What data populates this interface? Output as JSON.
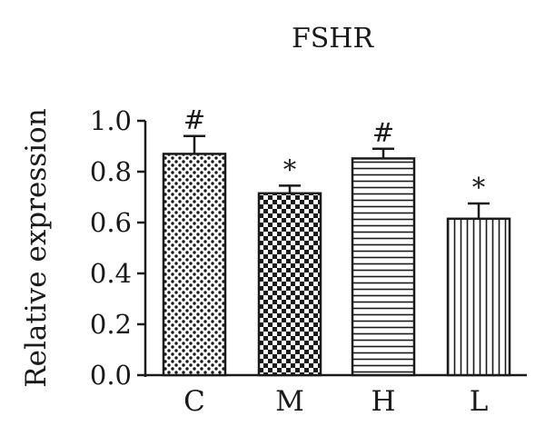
{
  "chart_data": {
    "type": "bar",
    "title": "FSHR",
    "xlabel": "",
    "ylabel": "Relative expression",
    "ylim": [
      0,
      1.0
    ],
    "yticks": [
      "0.0",
      "0.2",
      "0.4",
      "0.6",
      "0.8",
      "1.0"
    ],
    "categories": [
      "C",
      "M",
      "H",
      "L"
    ],
    "values": [
      0.87,
      0.715,
      0.852,
      0.615
    ],
    "errors": [
      0.07,
      0.03,
      0.038,
      0.06
    ],
    "annotations": [
      "#",
      "*",
      "#",
      "*"
    ],
    "patterns": [
      "dots",
      "checker",
      "horizontal-lines",
      "vertical-lines"
    ],
    "color": "#1a1a1a"
  }
}
